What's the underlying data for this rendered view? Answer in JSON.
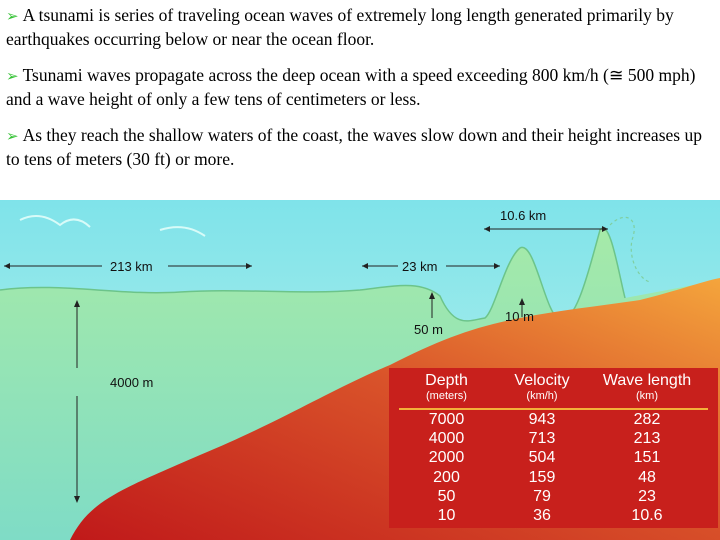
{
  "bullets": [
    {
      "text": "A tsunami is series of traveling ocean waves of extremely long length generated primarily by earthquakes occurring below or near the ocean floor."
    },
    {
      "text": "Tsunami waves propagate across the deep ocean with a speed exceeding 800 km/h (≅ 500 mph) and a wave height of only a few tens of centimeters or less."
    },
    {
      "text": "As they reach the shallow waters of the coast, the waves slow down and their height increases up to tens of meters (30 ft) or more."
    }
  ],
  "bullet_icon": "arrowhead-bullet-icon",
  "figure": {
    "labels": {
      "wavelength_deep": "213 km",
      "depth": "4000 m",
      "wavelength_mid": "23 km",
      "wavelength_shallow": "10.6 km",
      "depth_mid": "50 m",
      "depth_shallow": "10 m"
    },
    "colors": {
      "sky": "#9fece8",
      "water": "#9be2a5",
      "seafloor_red": "#c8201c",
      "seafloor_orange": "#f0a13b",
      "table_bg": "#c8201c",
      "table_rule": "#f3b13a"
    }
  },
  "table": {
    "headers": [
      {
        "title": "Depth",
        "unit": "(meters)"
      },
      {
        "title": "Velocity",
        "unit": "(km/h)"
      },
      {
        "title": "Wave length",
        "unit": "(km)"
      }
    ],
    "rows": [
      [
        "7000",
        "943",
        "282"
      ],
      [
        "4000",
        "713",
        "213"
      ],
      [
        "2000",
        "504",
        "151"
      ],
      [
        "200",
        "159",
        "48"
      ],
      [
        "50",
        "79",
        "23"
      ],
      [
        "10",
        "36",
        "10.6"
      ]
    ]
  }
}
